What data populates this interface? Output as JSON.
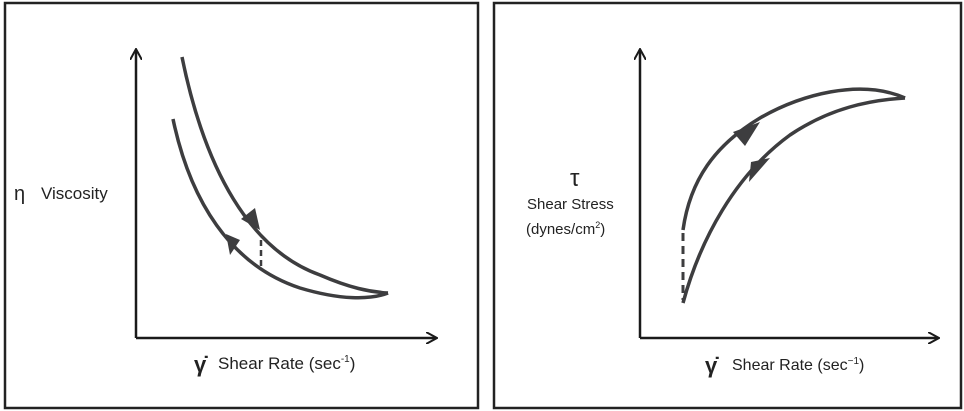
{
  "left_panel": {
    "y_symbol": "η",
    "y_label": "Viscosity",
    "x_symbol": "γ̇",
    "x_label": "Shear Rate (sec",
    "x_unit_exp": "-1",
    "x_label_close": ")"
  },
  "right_panel": {
    "y_symbol": "τ",
    "y_label": "Shear Stress",
    "y_unit": "(dynes/cm",
    "y_unit_exp": "2",
    "y_unit_close": ")",
    "x_symbol": "γ̇",
    "x_label": "Shear Rate (sec",
    "x_unit_exp": "−1",
    "x_label_close": ")"
  },
  "colors": {
    "curve": "#3d3d3f",
    "axis": "#1a1a1a",
    "frame": "#222222"
  }
}
